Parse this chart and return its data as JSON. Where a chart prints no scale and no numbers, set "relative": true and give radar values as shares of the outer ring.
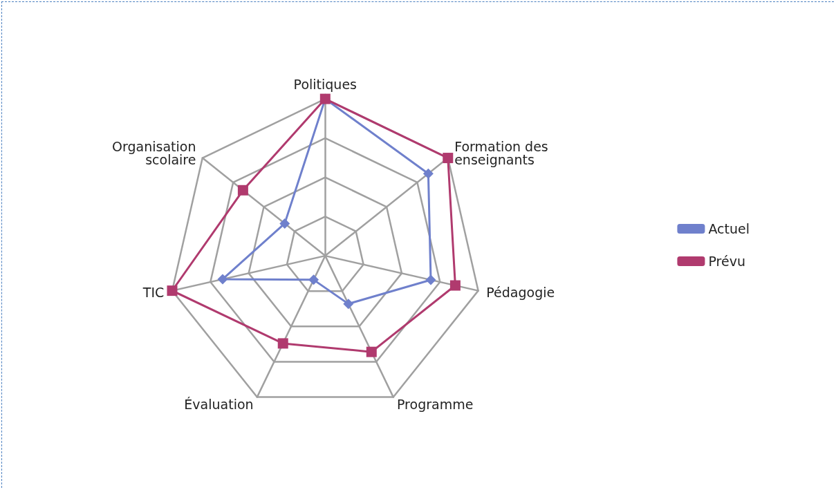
{
  "chart_data": {
    "type": "radar",
    "relative": true,
    "categories": [
      "Politiques",
      "Formation des enseignants",
      "Pédagogie",
      "Programme",
      "Évaluation",
      "TIC",
      "Organisation scolaire"
    ],
    "series": [
      {
        "name": "Actuel",
        "color": "#6f80cc",
        "marker": "diamond",
        "values": [
          1,
          0.84,
          0.69,
          0.34,
          0.17,
          0.67,
          0.33
        ]
      },
      {
        "name": "Prévu",
        "color": "#b03a6e",
        "marker": "square",
        "values": [
          1,
          1,
          0.85,
          0.68,
          0.62,
          1,
          0.67
        ]
      }
    ],
    "grid": true,
    "legend": "right"
  }
}
